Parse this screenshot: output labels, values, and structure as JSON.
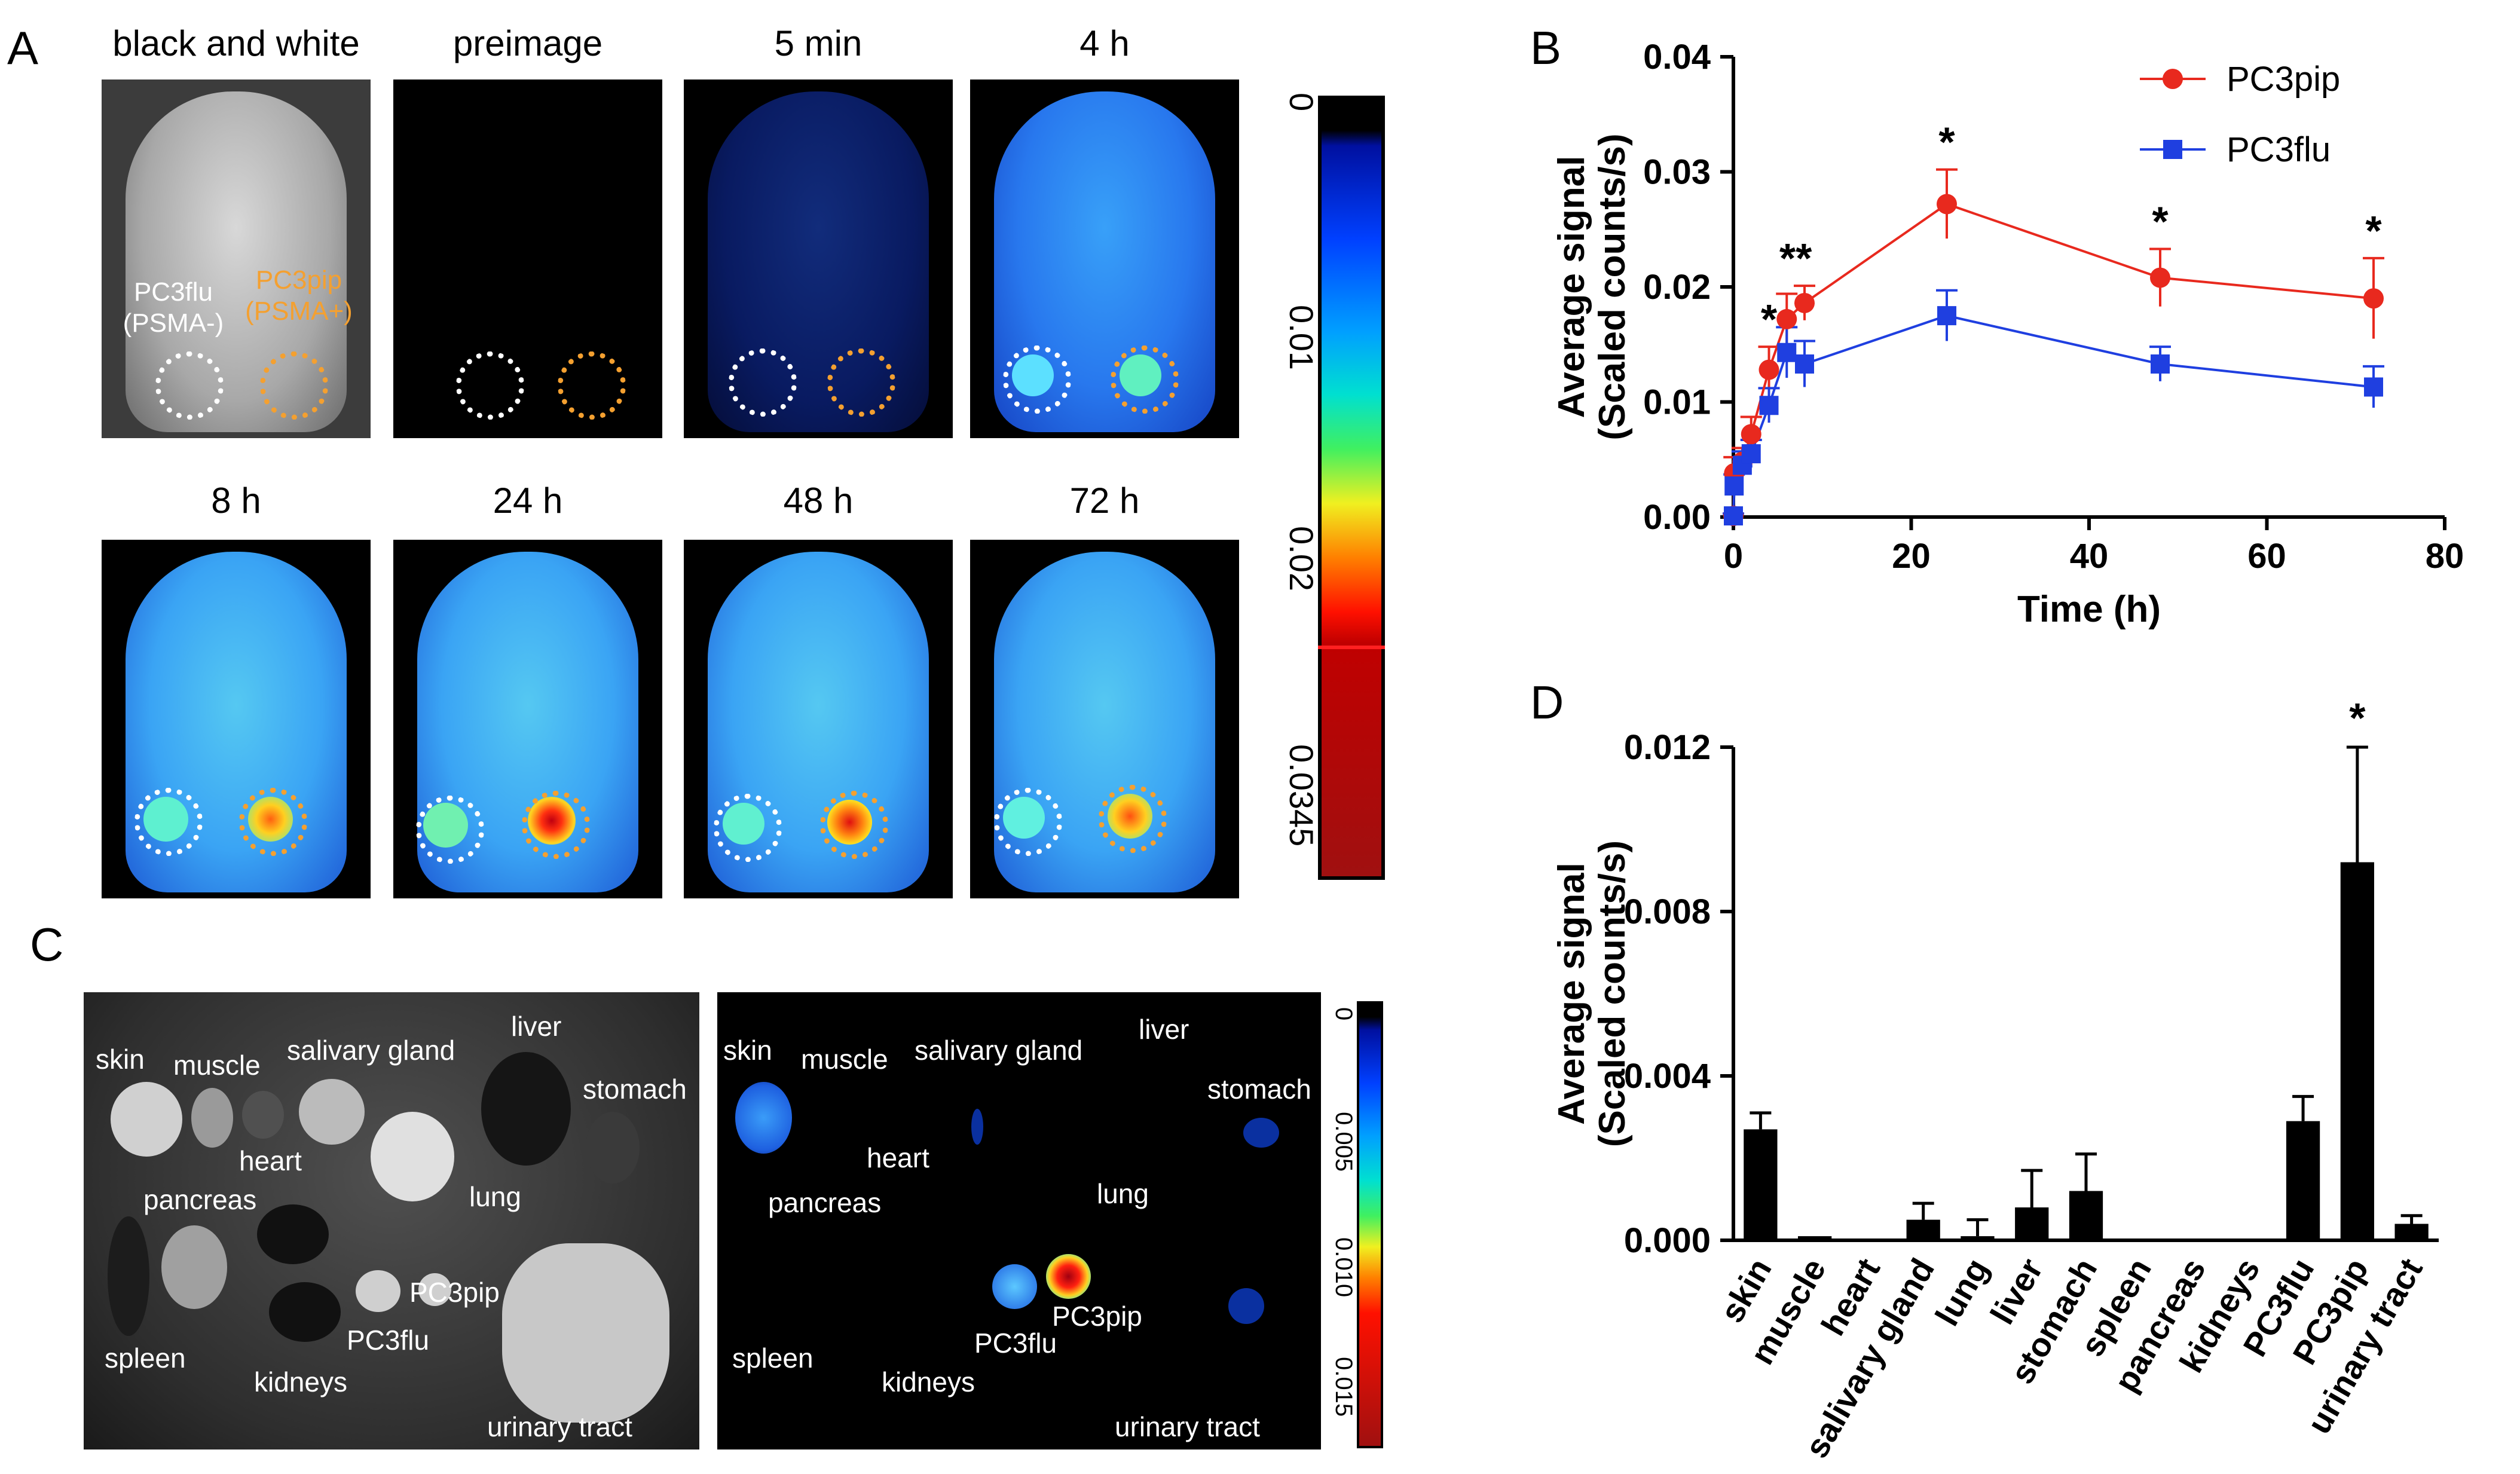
{
  "panels": {
    "a": "A",
    "b": "B",
    "c": "C",
    "d": "D"
  },
  "panel_a": {
    "titles": [
      "black and white",
      "preimage",
      "5 min",
      "4 h",
      "8 h",
      "24 h",
      "48 h",
      "72 h"
    ],
    "tumor_labels": {
      "neg": "PC3flu\n(PSMA-)",
      "pos": "PC3pip\n(PSMA+)"
    },
    "colorbar_ticks": [
      "0",
      "0.01",
      "0.02",
      "0.0345"
    ]
  },
  "panel_c": {
    "organ_labels": [
      "skin",
      "muscle",
      "salivary gland",
      "liver",
      "stomach",
      "heart",
      "lung",
      "pancreas",
      "PC3pip",
      "spleen",
      "PC3flu",
      "kidneys",
      "urinary tract"
    ],
    "colorbar_ticks": [
      "0",
      "0.005",
      "0.010",
      "0.015"
    ]
  },
  "colors": {
    "pc3pip": "#e8291e",
    "pc3flu": "#1f3fe0",
    "bar": "#000000"
  },
  "chart_data": [
    {
      "type": "line",
      "title": "",
      "xlabel": "Time (h)",
      "ylabel": "Average signal",
      "ylabel2": "(Scaled counts/s)",
      "xlim": [
        0,
        80
      ],
      "ylim": [
        0,
        0.04
      ],
      "xticks": [
        "0",
        "20",
        "40",
        "60",
        "80"
      ],
      "yticks": [
        "0.00",
        "0.01",
        "0.02",
        "0.03",
        "0.04"
      ],
      "x": [
        0,
        0.083,
        1,
        2,
        4,
        6,
        8,
        24,
        48,
        72
      ],
      "series": [
        {
          "name": "PC3pip",
          "values": [
            0.0001,
            0.0038,
            0.0048,
            0.0072,
            0.0128,
            0.0172,
            0.0186,
            0.0272,
            0.0208,
            0.019
          ],
          "errors": [
            0.0002,
            0.0014,
            0.0012,
            0.0015,
            0.002,
            0.0022,
            0.0015,
            0.003,
            0.0025,
            0.0035
          ]
        },
        {
          "name": "PC3flu",
          "values": [
            0.0001,
            0.0027,
            0.0045,
            0.0055,
            0.0097,
            0.0143,
            0.0133,
            0.0175,
            0.0133,
            0.0113
          ],
          "errors": [
            0.0002,
            0.001,
            0.0012,
            0.0012,
            0.0015,
            0.0022,
            0.002,
            0.0022,
            0.0015,
            0.0018
          ]
        }
      ],
      "significance": [
        {
          "x": 4,
          "label": "*"
        },
        {
          "x": 7,
          "label": "**"
        },
        {
          "x": 24,
          "label": "*"
        },
        {
          "x": 48,
          "label": "*"
        },
        {
          "x": 72,
          "label": "*"
        }
      ],
      "legend": "top-right"
    },
    {
      "type": "bar",
      "title": "",
      "xlabel": "",
      "ylabel": "Average signal",
      "ylabel2": "(Scaled counts/s)",
      "ylim": [
        0,
        0.012
      ],
      "yticks": [
        "0.000",
        "0.004",
        "0.008",
        "0.012"
      ],
      "categories": [
        "skin",
        "muscle",
        "heart",
        "salivary gland",
        "lung",
        "liver",
        "stomach",
        "spleen",
        "pancreas",
        "kidneys",
        "PC3flu",
        "PC3pip",
        "urinary tract"
      ],
      "values": [
        0.0027,
        0.0001,
        0.0,
        0.0005,
        0.0001,
        0.0008,
        0.0012,
        0.0,
        0.0,
        0.0,
        0.0029,
        0.0092,
        0.0004
      ],
      "errors": [
        0.0004,
        0.0,
        0.0,
        0.0004,
        0.0004,
        0.0009,
        0.0009,
        0.0,
        0.0,
        0.0,
        0.0006,
        0.0028,
        0.0002
      ],
      "significance": [
        {
          "category": "PC3pip",
          "label": "*"
        }
      ]
    }
  ]
}
